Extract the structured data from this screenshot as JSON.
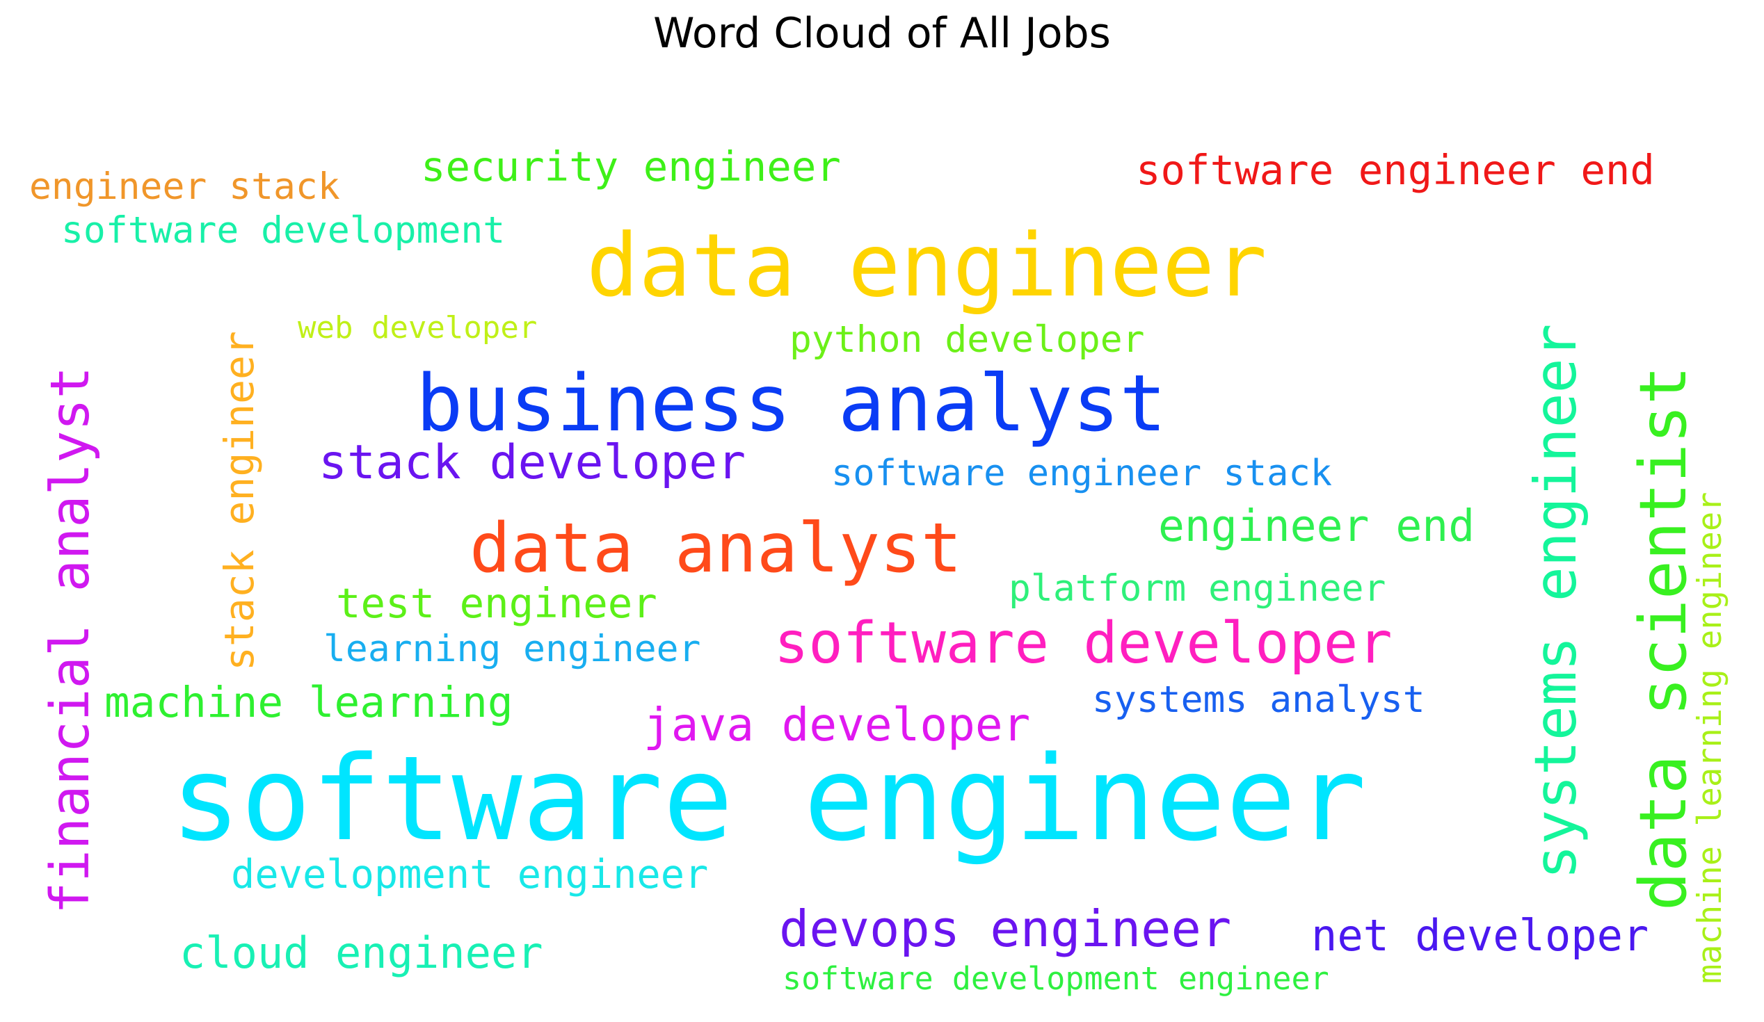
{
  "title": "Word Cloud of All Jobs",
  "words": [
    {
      "id": "software-engineer",
      "text": "software engineer",
      "color": "#00e5ff"
    },
    {
      "id": "data-engineer",
      "text": "data engineer",
      "color": "#ffd400"
    },
    {
      "id": "business-analyst",
      "text": "business analyst",
      "color": "#0a3cf5"
    },
    {
      "id": "data-analyst",
      "text": "data analyst",
      "color": "#ff4a1a"
    },
    {
      "id": "software-developer",
      "text": "software developer",
      "color": "#ff1fbf"
    },
    {
      "id": "systems-engineer",
      "text": "systems engineer",
      "color": "#14f59a"
    },
    {
      "id": "data-scientist",
      "text": "data scientist",
      "color": "#38f020"
    },
    {
      "id": "financial-analyst",
      "text": "financial analyst",
      "color": "#d018f0"
    },
    {
      "id": "stack-developer",
      "text": "stack developer",
      "color": "#6a14f0"
    },
    {
      "id": "devops-engineer",
      "text": "devops engineer",
      "color": "#6a14f0"
    },
    {
      "id": "java-developer",
      "text": "java developer",
      "color": "#e018f0"
    },
    {
      "id": "net-developer",
      "text": "net developer",
      "color": "#4a18f0"
    },
    {
      "id": "engineer-end",
      "text": "engineer end",
      "color": "#2ef050"
    },
    {
      "id": "software-engineer-end",
      "text": "software engineer end",
      "color": "#f01818"
    },
    {
      "id": "security-engineer",
      "text": "security engineer",
      "color": "#3ef018"
    },
    {
      "id": "machine-learning",
      "text": "machine learning",
      "color": "#2ef030"
    },
    {
      "id": "test-engineer",
      "text": "test engineer",
      "color": "#5cf018"
    },
    {
      "id": "stack-engineer",
      "text": "stack engineer",
      "color": "#ffb020"
    },
    {
      "id": "cloud-engineer",
      "text": "cloud engineer",
      "color": "#18f0b4"
    },
    {
      "id": "development-engineer",
      "text": "development engineer",
      "color": "#18e8e8"
    },
    {
      "id": "software-engineer-stack",
      "text": "software engineer stack",
      "color": "#1890f0"
    },
    {
      "id": "python-developer",
      "text": "python developer",
      "color": "#6cf018"
    },
    {
      "id": "platform-engineer",
      "text": "platform engineer",
      "color": "#2ef07a"
    },
    {
      "id": "learning-engineer",
      "text": "learning engineer",
      "color": "#18aef0"
    },
    {
      "id": "systems-analyst",
      "text": "systems analyst",
      "color": "#1860f0"
    },
    {
      "id": "engineer-stack",
      "text": "engineer stack",
      "color": "#f0962a"
    },
    {
      "id": "software-development",
      "text": "software development",
      "color": "#18f0a8"
    },
    {
      "id": "web-developer",
      "text": "web developer",
      "color": "#c0f018"
    },
    {
      "id": "machine-learning-engineer",
      "text": "machine learning engineer",
      "color": "#a8f018"
    },
    {
      "id": "software-development-engineer",
      "text": "software development engineer",
      "color": "#2ef040"
    }
  ]
}
